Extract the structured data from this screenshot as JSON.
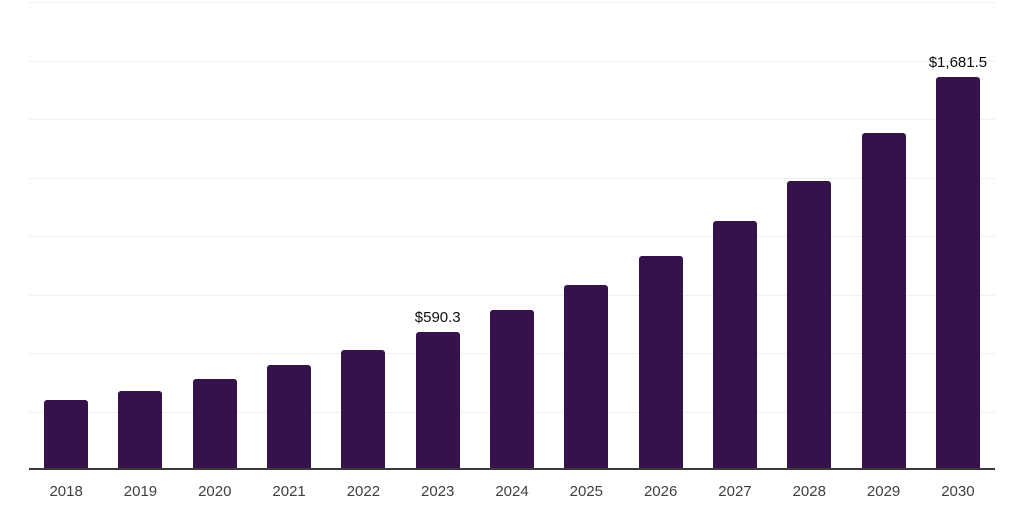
{
  "chart_data": {
    "type": "bar",
    "title": "",
    "xlabel": "",
    "ylabel": "",
    "categories": [
      "2018",
      "2019",
      "2020",
      "2021",
      "2022",
      "2023",
      "2024",
      "2025",
      "2026",
      "2027",
      "2028",
      "2029",
      "2030"
    ],
    "values": [
      298,
      338,
      388,
      447,
      515,
      590.3,
      684,
      791,
      914,
      1063,
      1237,
      1441,
      1681.5
    ],
    "data_labels": {
      "2023": "$590.3",
      "2030": "$1,681.5"
    },
    "ylim": [
      0,
      2000
    ],
    "gridline_step": 250,
    "grid": "horizontal-only",
    "legend": "none",
    "colors": {
      "bar": "#36124C",
      "axis_line": "#3a3a3a",
      "gridline": "#f0f0f0",
      "value_label": "#0d0d0d",
      "tick_label": "#3f3f3f",
      "background": "#ffffff"
    }
  }
}
